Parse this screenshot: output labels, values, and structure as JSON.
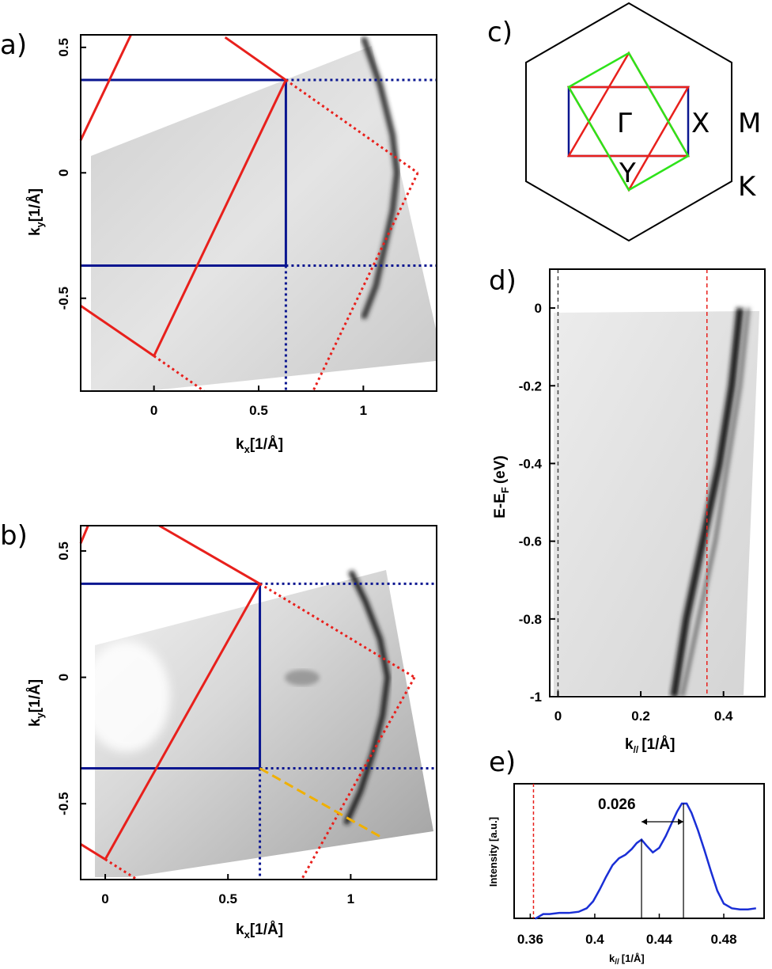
{
  "panel_labels": {
    "a": "a)",
    "b": "b)",
    "c": "c)",
    "d": "d)",
    "e": "e)"
  },
  "colors": {
    "frame": "#000000",
    "red": "#e8201c",
    "navy": "#0a1690",
    "green": "#2ee31a",
    "orange": "#f0b000",
    "blue_curve": "#1a2fd6"
  },
  "chart_data": [
    {
      "panel": "a)",
      "type": "heatmap",
      "xlabel_main": "k",
      "xlabel_sub": "x",
      "xlabel_unit": "[1/Å]",
      "ylabel_main": "k",
      "ylabel_sub": "y",
      "ylabel_unit": "[1/Å]",
      "xlim": [
        -0.35,
        1.35
      ],
      "ylim": [
        -0.87,
        0.55
      ],
      "x_ticks": [
        0,
        0.5,
        1
      ],
      "x_tick_labels": [
        "0",
        "0.5",
        "1"
      ],
      "y_ticks": [
        0.5,
        0,
        -0.5
      ],
      "y_tick_labels": [
        "0.5",
        "0",
        "-0.5"
      ],
      "band_path": [
        [
          1.0,
          0.54
        ],
        [
          1.08,
          0.35
        ],
        [
          1.14,
          0.15
        ],
        [
          1.16,
          0.0
        ],
        [
          1.14,
          -0.15
        ],
        [
          1.1,
          -0.3
        ],
        [
          1.06,
          -0.45
        ],
        [
          1.0,
          -0.58
        ]
      ],
      "overlay_lines": [
        {
          "style": "solid",
          "color": "navy",
          "points": [
            [
              -0.35,
              0.37
            ],
            [
              0.63,
              0.37
            ]
          ]
        },
        {
          "style": "solid",
          "color": "navy",
          "points": [
            [
              -0.35,
              -0.37
            ],
            [
              0.63,
              -0.37
            ]
          ]
        },
        {
          "style": "solid",
          "color": "navy",
          "points": [
            [
              0.63,
              0.37
            ],
            [
              0.63,
              -0.37
            ]
          ]
        },
        {
          "style": "dotted",
          "color": "navy",
          "points": [
            [
              0.63,
              0.37
            ],
            [
              1.35,
              0.37
            ]
          ]
        },
        {
          "style": "dotted",
          "color": "navy",
          "points": [
            [
              0.63,
              -0.37
            ],
            [
              1.35,
              -0.37
            ]
          ]
        },
        {
          "style": "dotted",
          "color": "navy",
          "points": [
            [
              0.63,
              -0.37
            ],
            [
              0.63,
              -0.87
            ]
          ]
        },
        {
          "style": "solid",
          "color": "red",
          "points": [
            [
              0.0,
              -0.73
            ],
            [
              0.63,
              0.37
            ]
          ]
        },
        {
          "style": "solid",
          "color": "red",
          "points": [
            [
              -0.35,
              0.13
            ],
            [
              -0.11,
              0.55
            ]
          ]
        },
        {
          "style": "solid",
          "color": "red",
          "points": [
            [
              0.34,
              0.54
            ],
            [
              0.63,
              0.37
            ]
          ]
        },
        {
          "style": "solid",
          "color": "red",
          "points": [
            [
              -0.35,
              -0.53
            ],
            [
              0.0,
              -0.73
            ]
          ]
        },
        {
          "style": "dotted",
          "color": "red",
          "points": [
            [
              0.63,
              0.37
            ],
            [
              1.26,
              0.0
            ]
          ]
        },
        {
          "style": "dotted",
          "color": "red",
          "points": [
            [
              1.26,
              0.0
            ],
            [
              0.76,
              -0.87
            ]
          ]
        },
        {
          "style": "dotted",
          "color": "red",
          "points": [
            [
              0.0,
              -0.73
            ],
            [
              0.24,
              -0.87
            ]
          ]
        },
        {
          "style": "solid",
          "color": "black",
          "points": [
            [
              1.26,
              0.54
            ],
            [
              1.26,
              -0.73
            ],
            [
              1.03,
              -0.86
            ]
          ]
        }
      ]
    },
    {
      "panel": "b)",
      "type": "heatmap",
      "xlabel_main": "k",
      "xlabel_sub": "x",
      "xlabel_unit": "[1/Å]",
      "ylabel_main": "k",
      "ylabel_sub": "y",
      "ylabel_unit": "[1/Å]",
      "xlim": [
        -0.1,
        1.35
      ],
      "ylim": [
        -0.8,
        0.6
      ],
      "x_ticks": [
        0,
        0.5,
        1
      ],
      "x_tick_labels": [
        "0",
        "0.5",
        "1"
      ],
      "y_ticks": [
        0.5,
        0,
        -0.5
      ],
      "y_tick_labels": [
        "0.5",
        "0",
        "-0.5"
      ],
      "band_path": [
        [
          1.0,
          0.42
        ],
        [
          1.06,
          0.3
        ],
        [
          1.12,
          0.15
        ],
        [
          1.15,
          0.0
        ],
        [
          1.13,
          -0.15
        ],
        [
          1.09,
          -0.3
        ],
        [
          1.04,
          -0.45
        ],
        [
          0.98,
          -0.58
        ]
      ],
      "overlay_lines": [
        {
          "style": "solid",
          "color": "navy",
          "points": [
            [
              -0.1,
              0.37
            ],
            [
              0.63,
              0.37
            ]
          ]
        },
        {
          "style": "solid",
          "color": "navy",
          "points": [
            [
              -0.1,
              -0.36
            ],
            [
              0.63,
              -0.36
            ]
          ]
        },
        {
          "style": "solid",
          "color": "navy",
          "points": [
            [
              0.63,
              0.37
            ],
            [
              0.63,
              -0.36
            ]
          ]
        },
        {
          "style": "dotted",
          "color": "navy",
          "points": [
            [
              0.63,
              0.37
            ],
            [
              1.35,
              0.37
            ]
          ]
        },
        {
          "style": "dotted",
          "color": "navy",
          "points": [
            [
              0.63,
              -0.36
            ],
            [
              1.35,
              -0.36
            ]
          ]
        },
        {
          "style": "dotted",
          "color": "navy",
          "points": [
            [
              0.63,
              -0.36
            ],
            [
              0.63,
              -0.8
            ]
          ]
        },
        {
          "style": "solid",
          "color": "red",
          "points": [
            [
              0.0,
              -0.72
            ],
            [
              0.63,
              0.37
            ]
          ]
        },
        {
          "style": "solid",
          "color": "red",
          "points": [
            [
              -0.1,
              0.53
            ],
            [
              -0.07,
              0.6
            ]
          ]
        },
        {
          "style": "solid",
          "color": "red",
          "points": [
            [
              0.22,
              0.6
            ],
            [
              0.63,
              0.37
            ]
          ]
        },
        {
          "style": "solid",
          "color": "red",
          "points": [
            [
              -0.1,
              -0.66
            ],
            [
              0.0,
              -0.72
            ]
          ]
        },
        {
          "style": "dotted",
          "color": "red",
          "points": [
            [
              0.63,
              0.37
            ],
            [
              1.26,
              0.0
            ]
          ]
        },
        {
          "style": "dotted",
          "color": "red",
          "points": [
            [
              1.26,
              0.0
            ],
            [
              0.8,
              -0.8
            ]
          ]
        },
        {
          "style": "dotted",
          "color": "red",
          "points": [
            [
              0.0,
              -0.72
            ],
            [
              0.13,
              -0.8
            ]
          ]
        },
        {
          "style": "dashed",
          "color": "orange",
          "points": [
            [
              0.63,
              -0.36
            ],
            [
              1.12,
              -0.63
            ]
          ]
        },
        {
          "style": "solid",
          "color": "black",
          "points": [
            [
              1.26,
              0.6
            ],
            [
              1.26,
              -0.72
            ],
            [
              1.13,
              -0.79
            ]
          ]
        }
      ]
    },
    {
      "panel": "c)",
      "type": "diagram",
      "point_labels": {
        "gamma": "Γ",
        "x": "X",
        "y": "Y",
        "m": "M",
        "k": "K"
      }
    },
    {
      "panel": "d)",
      "type": "heatmap",
      "xlabel_main": "k",
      "xlabel_sub": "//",
      "xlabel_unit": "[1/Å]",
      "ylabel_main": "E-E",
      "ylabel_sub": "F",
      "ylabel_unit": "(eV)",
      "xlim": [
        -0.02,
        0.5
      ],
      "ylim": [
        -1.0,
        0.1
      ],
      "x_ticks": [
        0,
        0.2,
        0.4
      ],
      "x_tick_labels": [
        "0",
        "0.2",
        "0.4"
      ],
      "y_ticks": [
        0,
        -0.2,
        -0.4,
        -0.6,
        -0.8,
        -1
      ],
      "y_tick_labels": [
        "0",
        "-0.2",
        "-0.4",
        "-0.6",
        "-0.8",
        "-1"
      ],
      "reference_lines_x": [
        0.0,
        0.36
      ],
      "band_1": {
        "k": [
          0.28,
          0.31,
          0.35,
          0.39,
          0.42,
          0.44
        ],
        "E": [
          -1.0,
          -0.8,
          -0.6,
          -0.4,
          -0.2,
          0.0
        ]
      },
      "band_2": {
        "k": [
          0.3,
          0.34,
          0.38,
          0.41,
          0.44,
          0.46
        ],
        "E": [
          -1.0,
          -0.8,
          -0.6,
          -0.4,
          -0.2,
          0.0
        ]
      }
    },
    {
      "panel": "e)",
      "type": "line",
      "xlabel_main": "k",
      "xlabel_sub": "//",
      "xlabel_unit": "[1/Å]",
      "ylabel": "Intensity [a.u.]",
      "xlim": [
        0.35,
        0.505
      ],
      "x_ticks": [
        0.36,
        0.4,
        0.44,
        0.48
      ],
      "x_tick_labels": [
        "0.36",
        "0.4",
        "0.44",
        "0.48"
      ],
      "reference_line_x": 0.362,
      "peak_lines_x": [
        0.429,
        0.455
      ],
      "annotation": "0.026",
      "series": [
        {
          "x": [
            0.363,
            0.368,
            0.372,
            0.378,
            0.384,
            0.39,
            0.395,
            0.399,
            0.403,
            0.407,
            0.411,
            0.415,
            0.419,
            0.423,
            0.426,
            0.429,
            0.432,
            0.436,
            0.44,
            0.444,
            0.448,
            0.451,
            0.454,
            0.457,
            0.46,
            0.464,
            0.468,
            0.472,
            0.476,
            0.48,
            0.485,
            0.49,
            0.495,
            0.5
          ],
          "y": [
            0.01,
            0.05,
            0.05,
            0.06,
            0.06,
            0.07,
            0.1,
            0.16,
            0.26,
            0.37,
            0.47,
            0.53,
            0.56,
            0.61,
            0.66,
            0.69,
            0.64,
            0.58,
            0.62,
            0.72,
            0.84,
            0.93,
            1.0,
            1.0,
            0.92,
            0.77,
            0.6,
            0.42,
            0.25,
            0.14,
            0.1,
            0.09,
            0.09,
            0.1
          ]
        }
      ]
    }
  ]
}
